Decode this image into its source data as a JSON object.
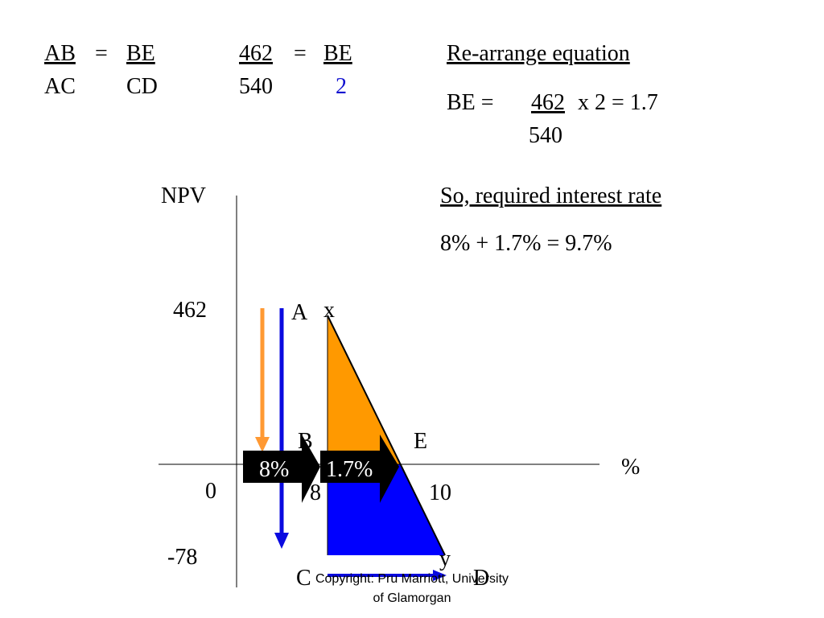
{
  "ratio_general": {
    "top": [
      "AB",
      "=",
      "BE"
    ],
    "bottom": [
      "AC",
      "CD"
    ]
  },
  "ratio_numbers": {
    "top": [
      "462",
      "=",
      "BE"
    ],
    "bottom": [
      "540",
      "2"
    ]
  },
  "rearrange": {
    "heading": "Re-arrange equation",
    "lhs": "BE  =",
    "numerator": "462",
    "rest": "x 2  =  1.7",
    "denominator": "540"
  },
  "conclusion": {
    "heading": "So, required interest rate",
    "result": "8% + 1.7% = 9.7%"
  },
  "diagram": {
    "y_axis_label": "NPV",
    "x_axis_label": "%",
    "y_labels": [
      "462",
      "0",
      "-78"
    ],
    "points": {
      "A": "A",
      "x": "x",
      "B": "B",
      "E": "E",
      "eight": "8",
      "ten": "10",
      "C": "C",
      "D": "D",
      "y": "y"
    },
    "arrows": [
      "8%",
      "1.7%"
    ]
  },
  "footer": [
    "Copyright:  Pru Marriott, University",
    "of Glamorgan"
  ]
}
